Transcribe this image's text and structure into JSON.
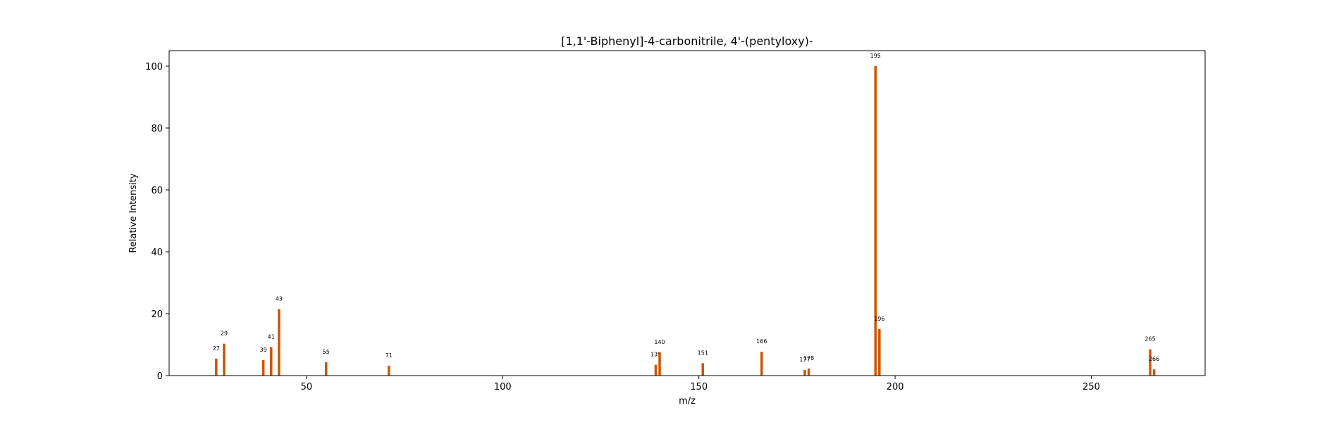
{
  "chart_data": {
    "type": "bar",
    "title": "[1,1'-Biphenyl]-4-carbonitrile, 4'-(pentyloxy)-",
    "xlabel": "m/z",
    "ylabel": "Relative Intensity",
    "xlim": [
      15,
      279
    ],
    "ylim": [
      0,
      105
    ],
    "xticks": [
      50,
      100,
      150,
      200,
      250
    ],
    "yticks": [
      0,
      20,
      40,
      60,
      80,
      100
    ],
    "grid": false,
    "bar_color": "#cc5500",
    "peaks": [
      {
        "x": 27,
        "y": 5.5,
        "label": "27"
      },
      {
        "x": 29,
        "y": 10.3,
        "label": "29"
      },
      {
        "x": 39,
        "y": 5.0,
        "label": "39"
      },
      {
        "x": 41,
        "y": 9.2,
        "label": "41"
      },
      {
        "x": 43,
        "y": 21.5,
        "label": "43"
      },
      {
        "x": 55,
        "y": 4.3,
        "label": "55"
      },
      {
        "x": 71,
        "y": 3.2,
        "label": "71"
      },
      {
        "x": 139,
        "y": 3.5,
        "label": "139"
      },
      {
        "x": 140,
        "y": 7.5,
        "label": "140"
      },
      {
        "x": 151,
        "y": 4.0,
        "label": "151"
      },
      {
        "x": 166,
        "y": 7.7,
        "label": "166"
      },
      {
        "x": 177,
        "y": 1.8,
        "label": "177"
      },
      {
        "x": 178,
        "y": 2.3,
        "label": "178"
      },
      {
        "x": 195,
        "y": 100.0,
        "label": "195"
      },
      {
        "x": 196,
        "y": 15.0,
        "label": "196"
      },
      {
        "x": 265,
        "y": 8.5,
        "label": "265"
      },
      {
        "x": 266,
        "y": 2.0,
        "label": "266"
      }
    ]
  }
}
